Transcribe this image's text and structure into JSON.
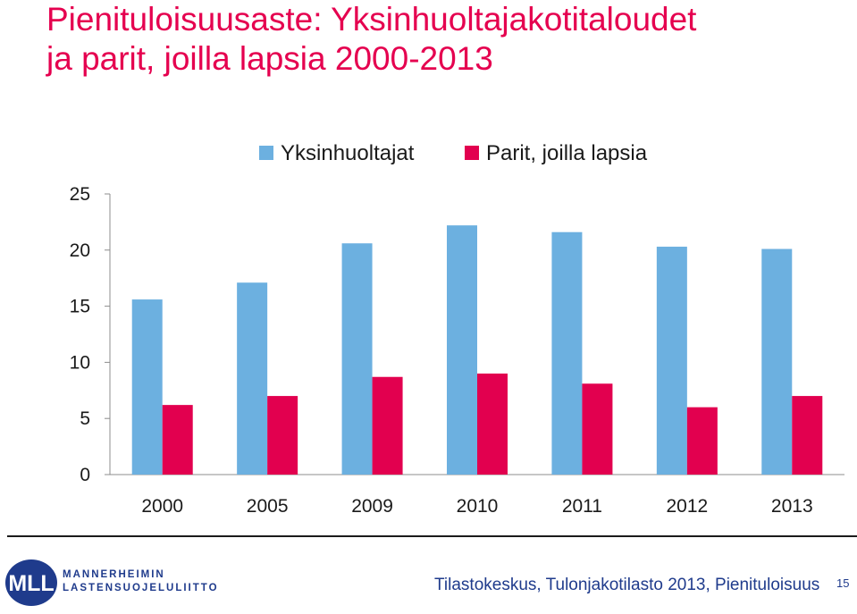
{
  "title_line1": "Pienituloisuusaste: Yksinhuoltajakotitaloudet",
  "title_line2": "ja parit, joilla lapsia 2000-2013",
  "colors": {
    "title": "#E5004F",
    "series1": "#6CB0E0",
    "series2": "#E2004F",
    "brand": "#1F3B8C"
  },
  "chart_data": {
    "type": "bar",
    "categories": [
      "2000",
      "2005",
      "2009",
      "2010",
      "2011",
      "2012",
      "2013"
    ],
    "series": [
      {
        "name": "Yksinhuoltajat",
        "values": [
          15.6,
          17.1,
          20.6,
          22.2,
          21.6,
          20.3,
          20.1
        ]
      },
      {
        "name": "Parit, joilla lapsia",
        "values": [
          6.2,
          7.0,
          8.7,
          9.0,
          8.1,
          6.0,
          7.0
        ]
      }
    ],
    "yticks": [
      "0",
      "5",
      "10",
      "15",
      "20",
      "25"
    ],
    "ylim": [
      0,
      25
    ],
    "grid": false,
    "legend_position": "top"
  },
  "footer": {
    "logo_name": "MLL",
    "logo_line1": "MANNERHEIMIN",
    "logo_line2": "LASTENSUOJELULIITTO",
    "source": "Tilastokeskus, Tulonjakotilasto 2013, Pienituloisuus",
    "page_number": "15"
  }
}
